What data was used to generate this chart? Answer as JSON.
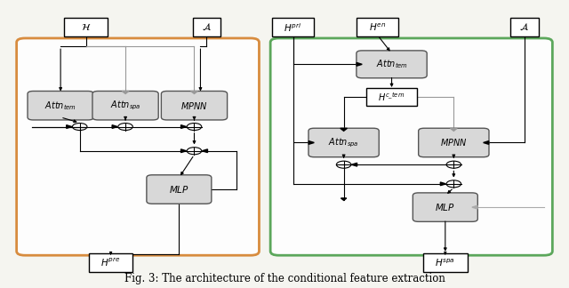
{
  "fig_width": 6.4,
  "fig_height": 3.24,
  "dpi": 100,
  "bg_color": "#f5f5f0",
  "caption": "Fig. 3: The architecture of the conditional feature extraction",
  "orange_color": "#d4802a",
  "green_color": "#4a9e4a",
  "box_fc": "#d8d8d8",
  "box_ec": "#555555"
}
